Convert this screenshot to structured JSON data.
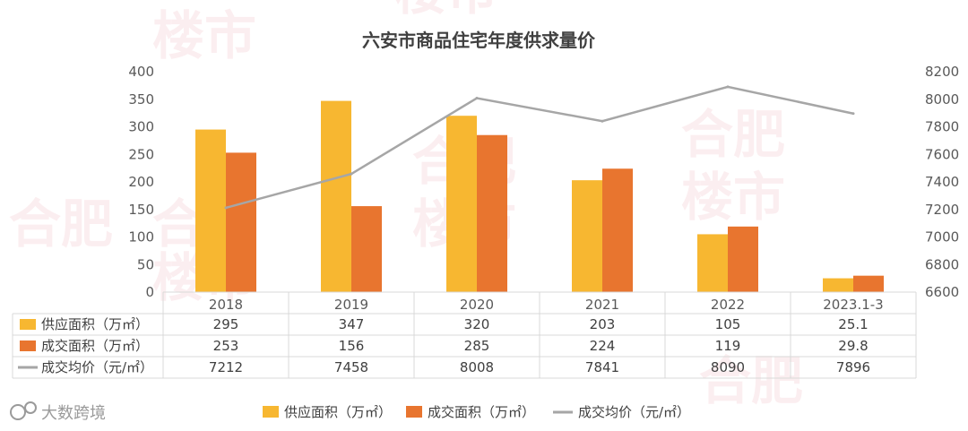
{
  "chart_data": {
    "type": "bar",
    "title": "六安市商品住宅年度供求量价",
    "categories": [
      "2018",
      "2019",
      "2020",
      "2021",
      "2022",
      "2023.1-3"
    ],
    "series": [
      {
        "name": "供应面积（万㎡）",
        "type": "bar",
        "axis": "left",
        "color": "#F7B731",
        "values": [
          295,
          347,
          320,
          203,
          105,
          25.1
        ],
        "labels": [
          "295",
          "347",
          "320",
          "203",
          "105",
          "25.1"
        ]
      },
      {
        "name": "成交面积（万㎡）",
        "type": "bar",
        "axis": "left",
        "color": "#E8752F",
        "values": [
          253,
          156,
          285,
          224,
          119,
          29.8
        ],
        "labels": [
          "253",
          "156",
          "285",
          "224",
          "119",
          "29.8"
        ]
      },
      {
        "name": "成交均价（元/㎡）",
        "type": "line",
        "axis": "right",
        "color": "#A6A6A6",
        "values": [
          7212,
          7458,
          8008,
          7841,
          8090,
          7896
        ],
        "labels": [
          "7212",
          "7458",
          "8008",
          "7841",
          "8090",
          "7896"
        ]
      }
    ],
    "ylim_left": [
      0,
      400
    ],
    "yticks_left": [
      "0",
      "50",
      "100",
      "150",
      "200",
      "250",
      "300",
      "350",
      "400"
    ],
    "ylim_right": [
      6600,
      8200
    ],
    "yticks_right": [
      "6600",
      "6800",
      "7000",
      "7200",
      "7400",
      "7600",
      "7800",
      "8000",
      "8200"
    ],
    "grid": false,
    "legend": "bottom",
    "data_table": true
  },
  "watermark": {
    "text_a": "合肥",
    "text_b": "楼市",
    "brand": "大数跨境"
  }
}
